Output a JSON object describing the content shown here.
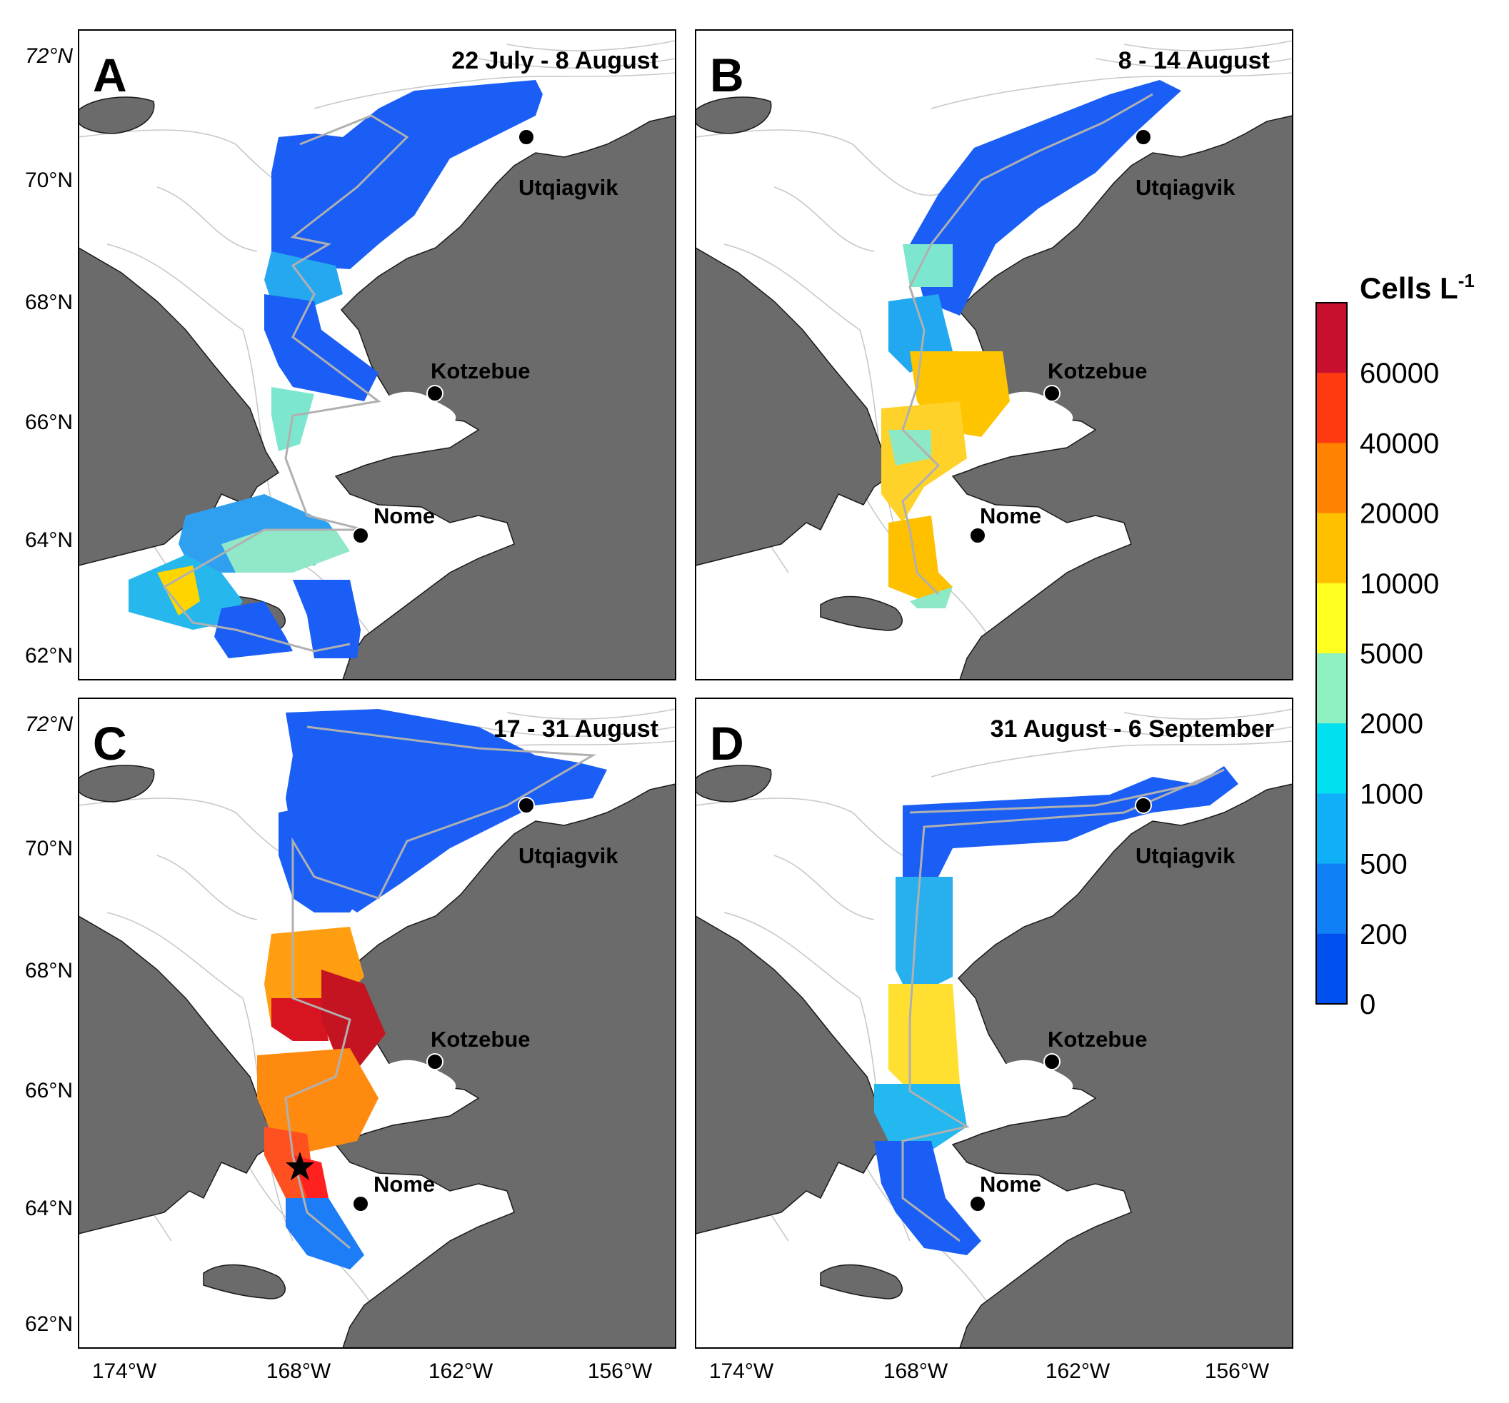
{
  "figure": {
    "colorbar": {
      "title": "Cells L",
      "title_exponent": "-1",
      "ticks": [
        "60000",
        "40000",
        "20000",
        "10000",
        "5000",
        "2000",
        "1000",
        "500",
        "200",
        "0"
      ],
      "colors": [
        "#c8102e",
        "#ff3a10",
        "#ff8200",
        "#ffc000",
        "#ffff20",
        "#8df0c0",
        "#00e0f0",
        "#10b0f8",
        "#1080f8",
        "#0050f0"
      ]
    },
    "axes": {
      "lat_ticks": [
        "72°N",
        "70°N",
        "68°N",
        "66°N",
        "64°N",
        "62°N"
      ],
      "lon_ticks": [
        "174°W",
        "168°W",
        "162°W",
        "156°W"
      ]
    },
    "panels": [
      {
        "letter": "A",
        "date": "22 July - 8 August"
      },
      {
        "letter": "B",
        "date": "8 - 14 August"
      },
      {
        "letter": "C",
        "date": "17 - 31 August"
      },
      {
        "letter": "D",
        "date": "31 August - 6 September"
      }
    ],
    "places": {
      "utqiagvik": "Utqiagvik",
      "kotzebue": "Kotzebue",
      "nome": "Nome"
    }
  }
}
